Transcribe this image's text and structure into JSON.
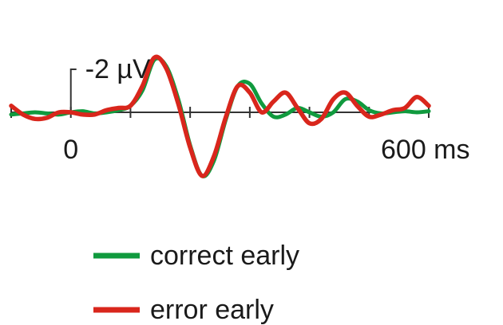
{
  "chart_data": {
    "type": "line",
    "title": "",
    "xlabel": "",
    "ylabel": "",
    "x_unit": "ms",
    "xlim": [
      -100,
      600
    ],
    "ylim": [
      -2.8,
      3.2
    ],
    "y_axis_inverted": true,
    "x_tick_labels": [
      "0",
      "600 ms"
    ],
    "x_tick_label_values": [
      0,
      600
    ],
    "minor_ticks_ms": [
      -100,
      0,
      100,
      200,
      300,
      400,
      500,
      600
    ],
    "y_scale_bar_label": "-2 µV",
    "y_scale_bar_value": -2,
    "grid": false,
    "legend": {
      "position": "bottom"
    },
    "series": [
      {
        "name": "correct early",
        "color": "#109a3e",
        "x": [
          -100,
          -80,
          -60,
          -40,
          -20,
          0,
          20,
          40,
          60,
          80,
          100,
          120,
          140,
          160,
          180,
          200,
          220,
          240,
          260,
          280,
          300,
          320,
          340,
          360,
          380,
          400,
          420,
          440,
          460,
          480,
          500,
          520,
          540,
          560,
          580,
          600
        ],
        "values": [
          0.1,
          0.05,
          0.0,
          0.05,
          0.1,
          0.0,
          -0.05,
          0.05,
          0.0,
          -0.1,
          -0.3,
          -1.0,
          -2.4,
          -2.1,
          -0.6,
          1.5,
          2.9,
          2.2,
          0.3,
          -1.2,
          -1.3,
          -0.4,
          0.2,
          0.1,
          -0.2,
          0.0,
          0.2,
          0.0,
          -0.6,
          -0.5,
          -0.1,
          0.05,
          0.0,
          -0.05,
          0.0,
          -0.05
        ]
      },
      {
        "name": "error early",
        "color": "#d9261c",
        "x": [
          -100,
          -80,
          -60,
          -40,
          -20,
          0,
          20,
          40,
          60,
          80,
          100,
          120,
          140,
          160,
          180,
          200,
          220,
          240,
          260,
          280,
          300,
          320,
          340,
          360,
          380,
          400,
          420,
          440,
          460,
          480,
          500,
          520,
          540,
          560,
          580,
          600
        ],
        "values": [
          -0.3,
          0.1,
          0.3,
          0.25,
          0.0,
          0.0,
          0.1,
          0.1,
          -0.1,
          -0.2,
          -0.3,
          -1.2,
          -2.5,
          -2.0,
          -0.4,
          1.6,
          2.9,
          2.0,
          0.2,
          -1.2,
          -0.9,
          0.0,
          -0.5,
          -0.9,
          -0.2,
          0.5,
          0.3,
          -0.6,
          -0.9,
          -0.3,
          0.2,
          0.1,
          -0.1,
          -0.2,
          -0.7,
          -0.3
        ]
      }
    ]
  }
}
